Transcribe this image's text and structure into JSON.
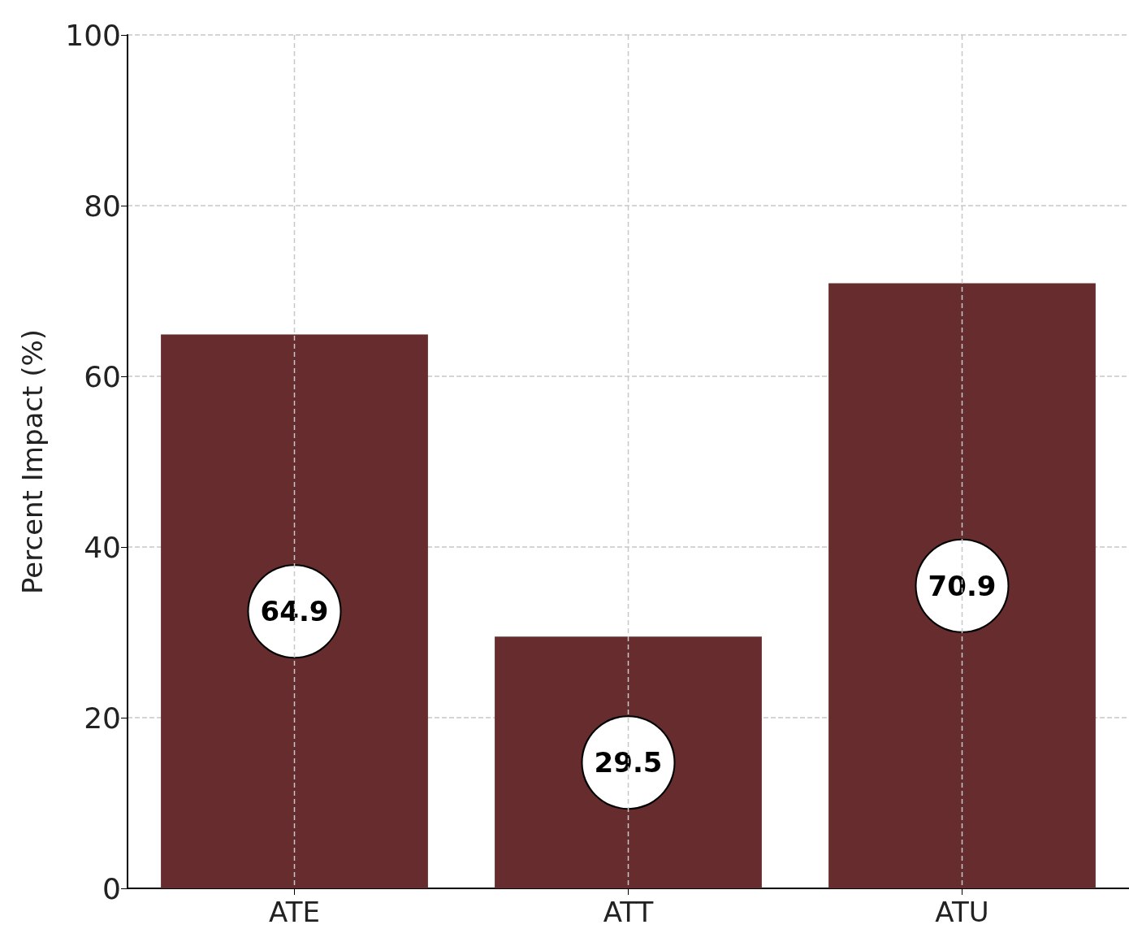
{
  "chart_data": {
    "type": "bar",
    "ylabel": "Percent Impact (%)",
    "categories": [
      "ATE",
      "ATT",
      "ATU"
    ],
    "values": [
      64.9,
      29.5,
      70.9
    ],
    "color": "#662c2e",
    "ylim": [
      0,
      100
    ],
    "yticks": [
      0,
      20,
      40,
      60,
      80,
      100
    ],
    "grid": true,
    "data_labels": true
  }
}
